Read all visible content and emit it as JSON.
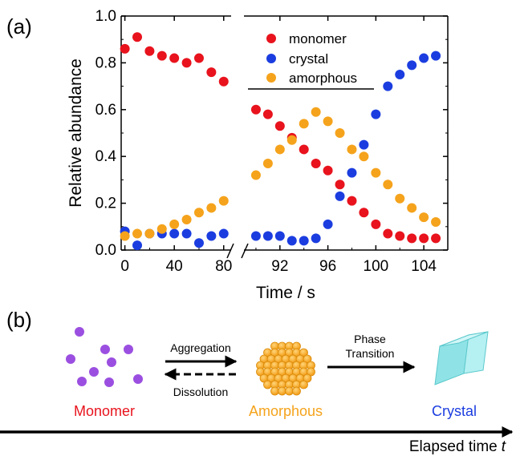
{
  "panel_a_label": "(a)",
  "panel_b_label": "(b)",
  "chart_data": {
    "type": "scatter",
    "xlabel": "Time / s",
    "ylabel": "Relative abundance",
    "ylim": [
      0.0,
      1.0
    ],
    "y_ticks": [
      "0.0",
      "0.2",
      "0.4",
      "0.6",
      "0.8",
      "1.0"
    ],
    "x_ticks_left": [
      "0",
      "40",
      "80"
    ],
    "x_ticks_right": [
      "92",
      "96",
      "100",
      "104"
    ],
    "xlim_left": [
      -3,
      86
    ],
    "xlim_right": [
      89,
      106
    ],
    "broken_x_axis": true,
    "grid": false,
    "legend_position": "top-right",
    "series": [
      {
        "name": "monomer",
        "color": "#e8131d",
        "segments": [
          {
            "x": [
              0,
              10,
              20,
              30,
              40,
              50,
              60,
              70,
              80
            ],
            "y": [
              0.86,
              0.91,
              0.85,
              0.83,
              0.82,
              0.8,
              0.82,
              0.76,
              0.72
            ]
          },
          {
            "x": [
              90,
              91,
              92,
              93,
              94,
              95,
              96,
              97,
              98,
              99,
              100,
              101,
              102,
              103,
              104,
              105
            ],
            "y": [
              0.6,
              0.58,
              0.53,
              0.48,
              0.43,
              0.37,
              0.34,
              0.28,
              0.21,
              0.16,
              0.11,
              0.07,
              0.06,
              0.05,
              0.05,
              0.05
            ]
          }
        ]
      },
      {
        "name": "crystal",
        "color": "#1b3de0",
        "segments": [
          {
            "x": [
              0,
              10,
              20,
              30,
              40,
              50,
              60,
              70,
              80
            ],
            "y": [
              0.08,
              0.02,
              0.07,
              0.07,
              0.07,
              0.07,
              0.03,
              0.06,
              0.07
            ]
          },
          {
            "x": [
              90,
              91,
              92,
              93,
              94,
              95,
              96,
              97,
              98,
              99,
              100,
              101,
              102,
              103,
              104,
              105
            ],
            "y": [
              0.06,
              0.06,
              0.06,
              0.04,
              0.04,
              0.05,
              0.11,
              0.23,
              0.33,
              0.45,
              0.58,
              0.7,
              0.75,
              0.79,
              0.82,
              0.83
            ]
          }
        ]
      },
      {
        "name": "amorphous",
        "color": "#f5a31c",
        "segments": [
          {
            "x": [
              0,
              10,
              20,
              30,
              40,
              50,
              60,
              70,
              80
            ],
            "y": [
              0.06,
              0.07,
              0.07,
              0.09,
              0.11,
              0.13,
              0.16,
              0.18,
              0.21
            ]
          },
          {
            "x": [
              90,
              91,
              92,
              93,
              94,
              95,
              96,
              97,
              98,
              99,
              100,
              101,
              102,
              103,
              104,
              105
            ],
            "y": [
              0.32,
              0.37,
              0.43,
              0.47,
              0.54,
              0.59,
              0.55,
              0.5,
              0.43,
              0.4,
              0.33,
              0.28,
              0.22,
              0.18,
              0.14,
              0.12
            ]
          }
        ]
      }
    ]
  },
  "scheme": {
    "aggregation_label": "Aggregation",
    "dissolution_label": "Dissolution",
    "phase_label_line1": "Phase",
    "phase_label_line2": "Transition",
    "monomer_label": "Monomer",
    "amorphous_label": "Amorphous",
    "crystal_label": "Crystal",
    "elapsed_label": "Elapsed time",
    "elapsed_var": "t",
    "colors": {
      "monomer_text": "#e8131d",
      "amorphous_text": "#f5a31c",
      "crystal_text": "#1b3de0",
      "monomer_dot": "#9b4fe0",
      "amorphous_ball": "#f5a31c",
      "crystal_fill": "#8fe3e6"
    }
  }
}
